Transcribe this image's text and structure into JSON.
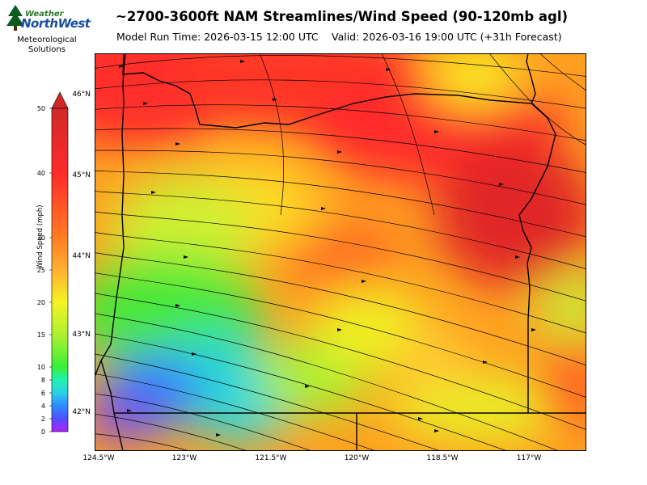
{
  "logo": {
    "name_top": "Weather",
    "name_main": "NorthWest",
    "subtitle_line1": "Meteorological",
    "subtitle_line2": "Solutions"
  },
  "title": "~2700-3600ft NAM Streamlines/Wind Speed (90-120mb agl)",
  "model_run": "Model Run Time: 2026-03-15 12:00 UTC",
  "valid_time": "Valid: 2026-03-16 19:00 UTC  (+31h Forecast)",
  "colorbar": {
    "label": "Wind Speed (mph)",
    "ticks": [
      "0",
      "2",
      "4",
      "6",
      "8",
      "10",
      "15",
      "20",
      "25",
      "30",
      "40",
      "50"
    ],
    "colors": [
      "#b020ff",
      "#5050ff",
      "#2f8bff",
      "#28d2e6",
      "#21f0b0",
      "#38f038",
      "#aef030",
      "#f4f424",
      "#ffb030",
      "#ff7d22",
      "#ff2a2a",
      "#d22828"
    ]
  },
  "map": {
    "lat_labels": [
      "46°N",
      "45°N",
      "44°N",
      "43°N",
      "42°N"
    ],
    "lon_labels": [
      "124.5°W",
      "123°W",
      "121.5°W",
      "120°W",
      "118.5°W",
      "117°W"
    ],
    "region": "Oregon and adjacent Washington, Idaho, California, Nevada"
  }
}
